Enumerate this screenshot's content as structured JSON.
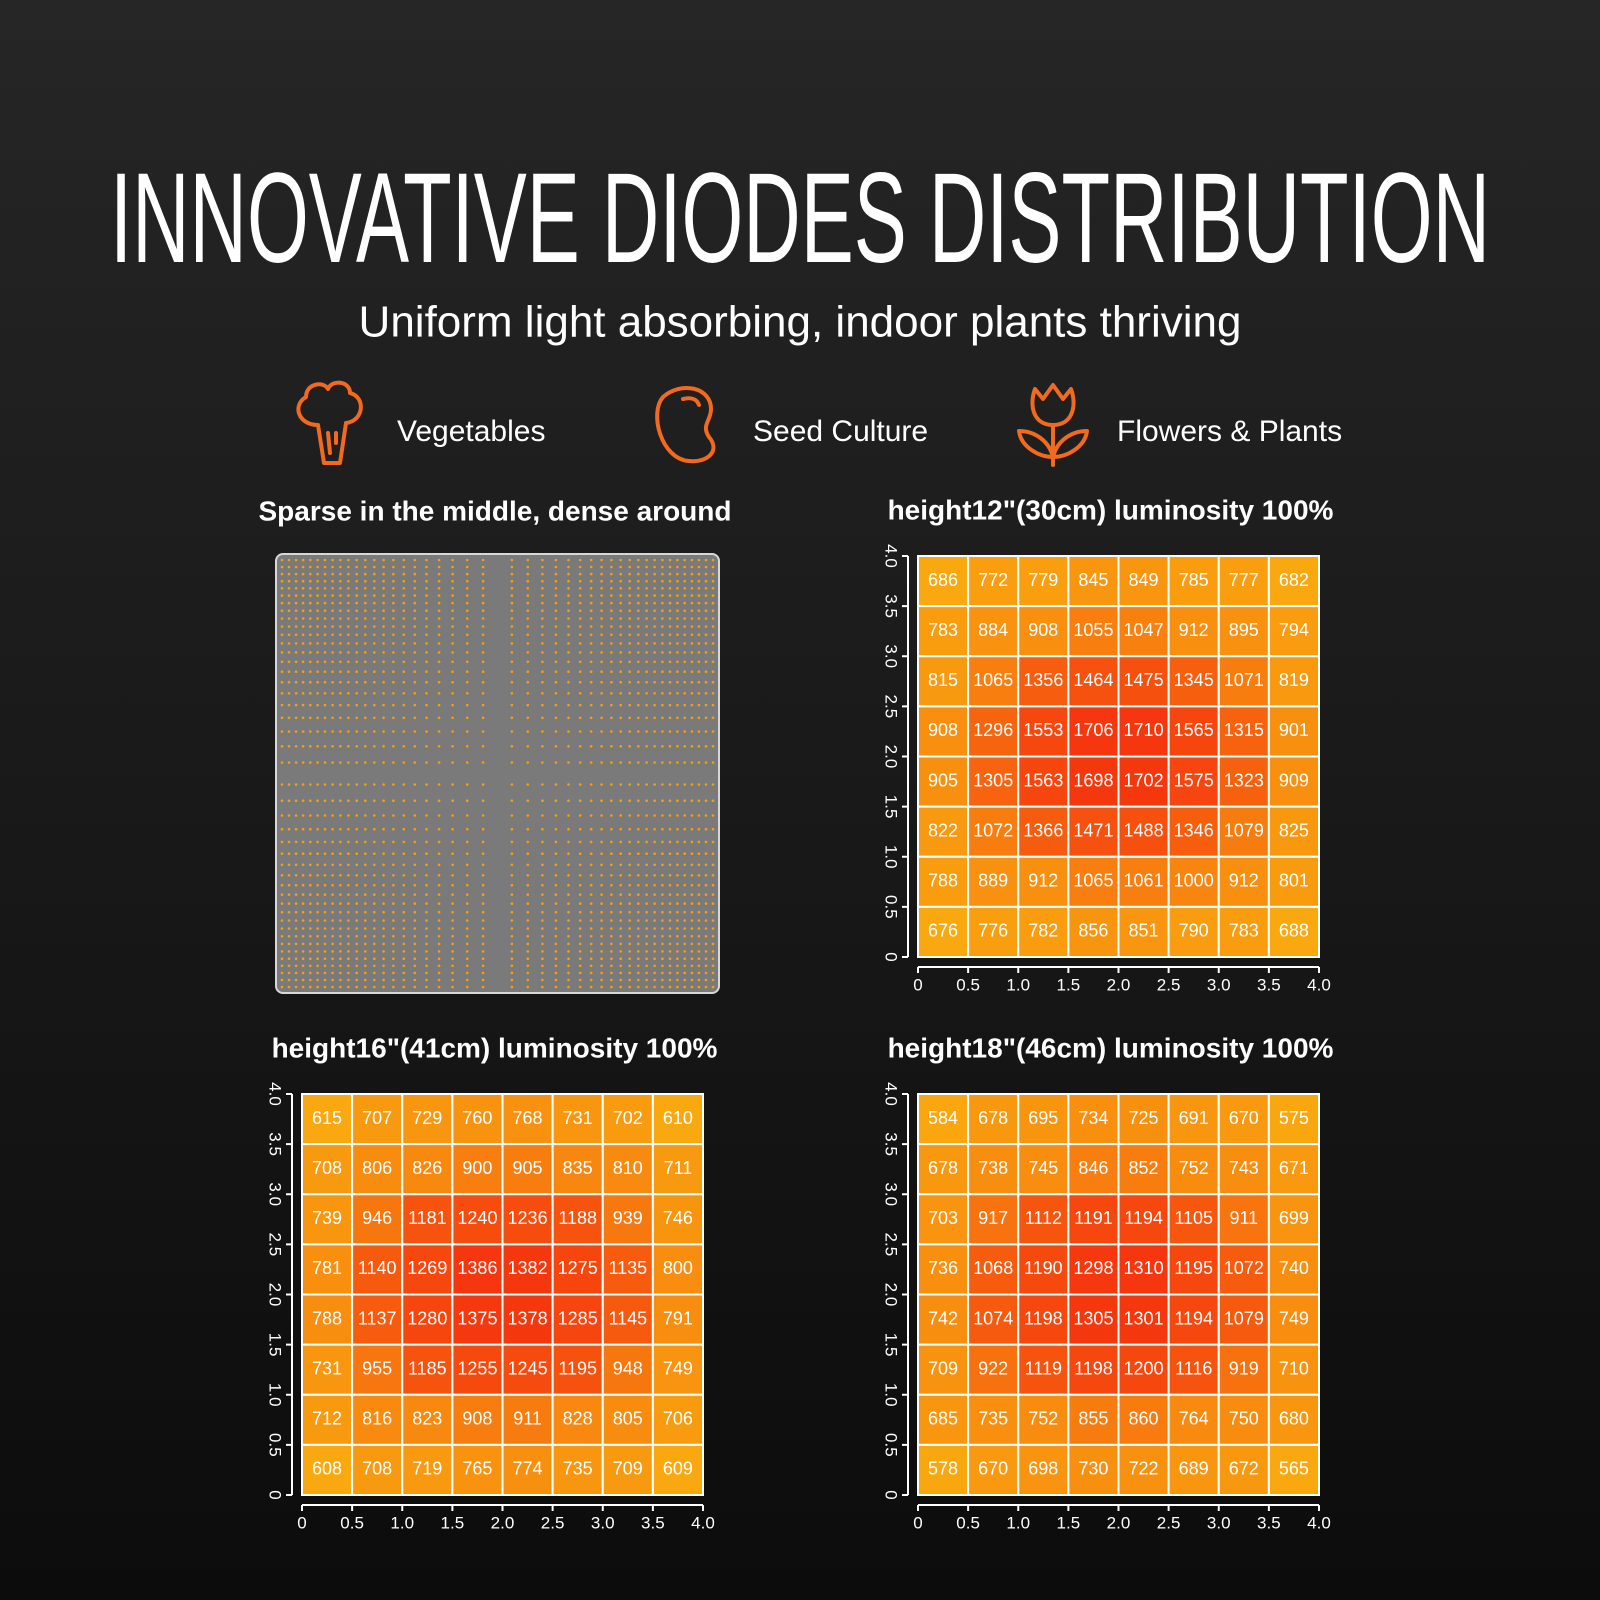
{
  "header": {
    "title": "INNOVATIVE DIODES DISTRIBUTION",
    "subtitle": "Uniform light absorbing, indoor plants thriving"
  },
  "features": [
    "Vegetables",
    "Seed Culture",
    "Flowers & Plants"
  ],
  "diode_panel": {
    "title": "Sparse in the middle, dense around"
  },
  "chart_data": [
    {
      "type": "heatmap",
      "title": "height12\"(30cm)  luminosity 100%",
      "xlim": [
        0,
        4
      ],
      "ylim": [
        0,
        4
      ],
      "xticks": [
        0,
        0.5,
        {
          "value": 1,
          "label": "1.0"
        },
        1.5,
        {
          "value": 2,
          "label": "2.0"
        },
        2.5,
        {
          "value": 3,
          "label": "3.0"
        },
        3.5,
        {
          "value": 4,
          "label": "4.0"
        }
      ],
      "yticks": [
        0,
        0.5,
        {
          "value": 1,
          "label": "1.0"
        },
        1.5,
        {
          "value": 2,
          "label": "2.0"
        },
        2.5,
        {
          "value": 3,
          "label": "3.0"
        },
        3.5,
        {
          "value": 4,
          "label": "4.0"
        }
      ],
      "color_scale": [
        "#f9a90f",
        "#f5360e"
      ],
      "values": [
        [
          686,
          772,
          779,
          845,
          849,
          785,
          777,
          682
        ],
        [
          783,
          884,
          908,
          1055,
          1047,
          912,
          895,
          794
        ],
        [
          815,
          1065,
          1356,
          1464,
          1475,
          1345,
          1071,
          819
        ],
        [
          908,
          1296,
          1553,
          1706,
          1710,
          1565,
          1315,
          901
        ],
        [
          905,
          1305,
          1563,
          1698,
          1702,
          1575,
          1323,
          909
        ],
        [
          822,
          1072,
          1366,
          1471,
          1488,
          1346,
          1079,
          825
        ],
        [
          788,
          889,
          912,
          1065,
          1061,
          1000,
          912,
          801
        ],
        [
          676,
          776,
          782,
          856,
          851,
          790,
          783,
          688
        ]
      ]
    },
    {
      "type": "heatmap",
      "title": "height16\"(41cm)  luminosity 100%",
      "xlim": [
        0,
        4
      ],
      "ylim": [
        0,
        4
      ],
      "xticks": [
        0,
        0.5,
        {
          "value": 1,
          "label": "1.0"
        },
        1.5,
        {
          "value": 2,
          "label": "2.0"
        },
        2.5,
        {
          "value": 3,
          "label": "3.0"
        },
        3.5,
        {
          "value": 4,
          "label": "4.0"
        }
      ],
      "yticks": [
        0,
        0.5,
        {
          "value": 1,
          "label": "1.0"
        },
        1.5,
        {
          "value": 2,
          "label": "2.0"
        },
        2.5,
        {
          "value": 3,
          "label": "3.0"
        },
        3.5,
        {
          "value": 4,
          "label": "4.0"
        }
      ],
      "color_scale": [
        "#f9a90f",
        "#f5360e"
      ],
      "values": [
        [
          615,
          707,
          729,
          760,
          768,
          731,
          702,
          610
        ],
        [
          708,
          806,
          826,
          900,
          905,
          835,
          810,
          711
        ],
        [
          739,
          946,
          1181,
          1240,
          1236,
          1188,
          939,
          746
        ],
        [
          781,
          1140,
          1269,
          1386,
          1382,
          1275,
          1135,
          800
        ],
        [
          788,
          1137,
          1280,
          1375,
          1378,
          1285,
          1145,
          791
        ],
        [
          731,
          955,
          1185,
          1255,
          1245,
          1195,
          948,
          749
        ],
        [
          712,
          816,
          823,
          908,
          911,
          828,
          805,
          706
        ],
        [
          608,
          708,
          719,
          765,
          774,
          735,
          709,
          609
        ]
      ]
    },
    {
      "type": "heatmap",
      "title": "height18\"(46cm)  luminosity 100%",
      "xlim": [
        0,
        4
      ],
      "ylim": [
        0,
        4
      ],
      "xticks": [
        0,
        0.5,
        {
          "value": 1,
          "label": "1.0"
        },
        1.5,
        {
          "value": 2,
          "label": "2.0"
        },
        2.5,
        {
          "value": 3,
          "label": "3.0"
        },
        3.5,
        {
          "value": 4,
          "label": "4.0"
        }
      ],
      "yticks": [
        0,
        0.5,
        {
          "value": 1,
          "label": "1.0"
        },
        1.5,
        {
          "value": 2,
          "label": "2.0"
        },
        2.5,
        {
          "value": 3,
          "label": "3.0"
        },
        3.5,
        {
          "value": 4,
          "label": "4.0"
        }
      ],
      "color_scale": [
        "#f9a90f",
        "#f5360e"
      ],
      "values": [
        [
          584,
          678,
          695,
          734,
          725,
          691,
          670,
          575
        ],
        [
          678,
          738,
          745,
          846,
          852,
          752,
          743,
          671
        ],
        [
          703,
          917,
          1112,
          1191,
          1194,
          1105,
          911,
          699
        ],
        [
          736,
          1068,
          1190,
          1298,
          1310,
          1195,
          1072,
          740
        ],
        [
          742,
          1074,
          1198,
          1305,
          1301,
          1194,
          1079,
          749
        ],
        [
          709,
          922,
          1119,
          1198,
          1200,
          1116,
          919,
          710
        ],
        [
          685,
          735,
          752,
          855,
          860,
          764,
          750,
          680
        ],
        [
          578,
          670,
          698,
          730,
          722,
          689,
          672,
          565
        ]
      ]
    }
  ]
}
